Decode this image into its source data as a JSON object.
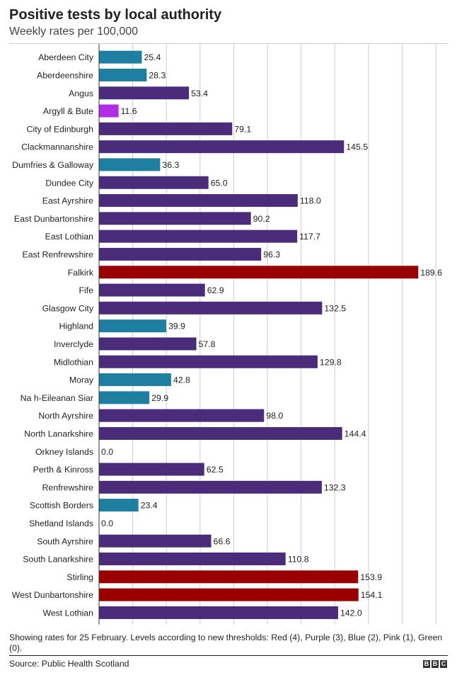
{
  "header": {
    "title": "Positive tests by local authority",
    "subtitle": "Weekly rates per 100,000"
  },
  "footer": {
    "note": "Showing rates for 25 February. Levels according to new thresholds: Red (4), Purple (3), Blue (2), Pink (1), Green (0).",
    "source": "Source: Public Health Scotland",
    "logo": [
      "B",
      "B",
      "C"
    ]
  },
  "colors": {
    "red": "#990000",
    "purple": "#4b2c7a",
    "blue": "#1f7fa0",
    "pink": "#b32de6",
    "gridline": "#cccccc",
    "axis": "#333333"
  },
  "chart_data": {
    "type": "bar",
    "orientation": "horizontal",
    "title": "Positive tests by local authority",
    "subtitle": "Weekly rates per 100,000",
    "xlim": [
      0,
      200
    ],
    "grid": true,
    "categories": [
      "Aberdeen City",
      "Aberdeenshire",
      "Angus",
      "Argyll & Bute",
      "City of Edinburgh",
      "Clackmannanshire",
      "Dumfries & Galloway",
      "Dundee City",
      "East Ayrshire",
      "East Dunbartonshire",
      "East Lothian",
      "East Renfrewshire",
      "Falkirk",
      "Fife",
      "Glasgow City",
      "Highland",
      "Inverclyde",
      "Midlothian",
      "Moray",
      "Na h-Eileanan Siar",
      "North Ayrshire",
      "North Lanarkshire",
      "Orkney Islands",
      "Perth & Kinross",
      "Renfrewshire",
      "Scottish Borders",
      "Shetland Islands",
      "South Ayrshire",
      "South Lanarkshire",
      "Stirling",
      "West Dunbartonshire",
      "West Lothian"
    ],
    "values": [
      25.4,
      28.3,
      53.4,
      11.6,
      79.1,
      145.5,
      36.3,
      65.0,
      118.0,
      90.2,
      117.7,
      96.3,
      189.6,
      62.9,
      132.5,
      39.9,
      57.8,
      129.8,
      42.8,
      29.9,
      98.0,
      144.4,
      0.0,
      62.5,
      132.3,
      23.4,
      0.0,
      66.6,
      110.8,
      153.9,
      154.1,
      142.0
    ],
    "labels": [
      "25.4",
      "28.3",
      "53.4",
      "11.6",
      "79.1",
      "145.5",
      "36.3",
      "65.0",
      "118.0",
      "90.2",
      "117.7",
      "96.3",
      "189.6",
      "62.9",
      "132.5",
      "39.9",
      "57.8",
      "129.8",
      "42.8",
      "29.9",
      "98.0",
      "144.4",
      "0.0",
      "62.5",
      "132.3",
      "23.4",
      "0.0",
      "66.6",
      "110.8",
      "153.9",
      "154.1",
      "142.0"
    ],
    "levels": [
      "blue",
      "blue",
      "purple",
      "pink",
      "purple",
      "purple",
      "blue",
      "purple",
      "purple",
      "purple",
      "purple",
      "purple",
      "red",
      "purple",
      "purple",
      "blue",
      "purple",
      "purple",
      "blue",
      "blue",
      "purple",
      "purple",
      "green",
      "purple",
      "purple",
      "blue",
      "green",
      "purple",
      "purple",
      "red",
      "red",
      "purple"
    ]
  }
}
